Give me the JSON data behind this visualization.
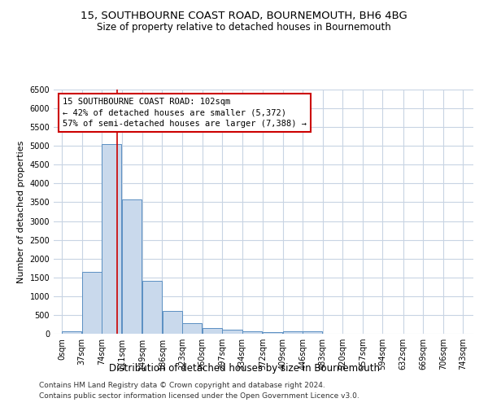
{
  "title": "15, SOUTHBOURNE COAST ROAD, BOURNEMOUTH, BH6 4BG",
  "subtitle": "Size of property relative to detached houses in Bournemouth",
  "xlabel": "Distribution of detached houses by size in Bournemouth",
  "ylabel": "Number of detached properties",
  "footer1": "Contains HM Land Registry data © Crown copyright and database right 2024.",
  "footer2": "Contains public sector information licensed under the Open Government Licence v3.0.",
  "bar_starts": [
    0,
    37,
    74,
    111,
    149,
    186,
    223,
    260,
    297,
    334,
    372,
    409,
    446
  ],
  "bar_heights": [
    75,
    1650,
    5050,
    3580,
    1400,
    610,
    290,
    145,
    100,
    70,
    50,
    55,
    55
  ],
  "bin_width": 37,
  "bar_color": "#c9d9ec",
  "bar_edge_color": "#5a8fc2",
  "grid_color": "#c8d4e3",
  "vline_x": 102,
  "vline_color": "#cc0000",
  "annotation_text": "15 SOUTHBOURNE COAST ROAD: 102sqm\n← 42% of detached houses are smaller (5,372)\n57% of semi-detached houses are larger (7,388) →",
  "annotation_box_color": "#cc0000",
  "annotation_fill": "#ffffff",
  "ylim": [
    0,
    6500
  ],
  "yticks": [
    0,
    500,
    1000,
    1500,
    2000,
    2500,
    3000,
    3500,
    4000,
    4500,
    5000,
    5500,
    6000,
    6500
  ],
  "xtick_labels": [
    "0sqm",
    "37sqm",
    "74sqm",
    "111sqm",
    "149sqm",
    "186sqm",
    "223sqm",
    "260sqm",
    "297sqm",
    "334sqm",
    "372sqm",
    "409sqm",
    "446sqm",
    "483sqm",
    "520sqm",
    "557sqm",
    "594sqm",
    "632sqm",
    "669sqm",
    "706sqm",
    "743sqm"
  ],
  "xtick_positions": [
    0,
    37,
    74,
    111,
    149,
    186,
    223,
    260,
    297,
    334,
    372,
    409,
    446,
    483,
    520,
    557,
    594,
    632,
    669,
    706,
    743
  ],
  "bg_color": "#ffffff",
  "title_fontsize": 9.5,
  "subtitle_fontsize": 8.5,
  "axis_label_fontsize": 8,
  "tick_fontsize": 7,
  "annotation_fontsize": 7.5,
  "footer_fontsize": 6.5
}
